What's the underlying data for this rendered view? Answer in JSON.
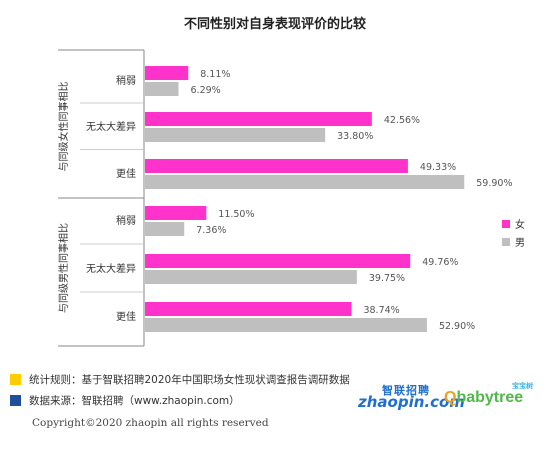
{
  "chart_data": {
    "type": "bar",
    "title": "不同性别对自身表现评价的比较",
    "orientation": "horizontal",
    "groups": [
      {
        "label": "与同级女性同事相比",
        "categories": [
          "稍弱",
          "无太大差异",
          "更佳"
        ],
        "series": [
          {
            "name": "女",
            "values": [
              8.11,
              42.56,
              49.33
            ],
            "labels": [
              "8.11%",
              "42.56%",
              "49.33%"
            ]
          },
          {
            "name": "男",
            "values": [
              6.29,
              33.8,
              59.9
            ],
            "labels": [
              "6.29%",
              "33.80%",
              "59.90%"
            ]
          }
        ]
      },
      {
        "label": "与同级男性同事相比",
        "categories": [
          "稍弱",
          "无太大差异",
          "更佳"
        ],
        "series": [
          {
            "name": "女",
            "values": [
              11.5,
              49.76,
              38.74
            ],
            "labels": [
              "11.50%",
              "49.76%",
              "38.74%"
            ]
          },
          {
            "name": "男",
            "values": [
              7.36,
              39.75,
              52.9
            ],
            "labels": [
              "7.36%",
              "39.75%",
              "52.90%"
            ]
          }
        ]
      }
    ],
    "legend": {
      "position": "right",
      "items": [
        {
          "name": "女",
          "color": "#ff33cc"
        },
        {
          "name": "男",
          "color": "#bfbfbf"
        }
      ]
    },
    "colors": {
      "female": "#ff33cc",
      "male": "#bfbfbf"
    },
    "grid": false
  },
  "footer": {
    "stat_rule": "统计规则：基于智联招聘2020年中国职场女性现状调查报告调研数据",
    "source": "数据来源：智联招聘（www.zhaopin.com）",
    "copyright": "Copyright©2020 zhaopin all rights reserved",
    "stat_rule_color": "#ffcc00",
    "source_color": "#1f4e9c"
  },
  "logos": {
    "zhaopin_cn": "智联招聘",
    "zhaopin_en": "zhaopin.com",
    "babytree_small": "宝宝树",
    "babytree_en": "babytree"
  }
}
